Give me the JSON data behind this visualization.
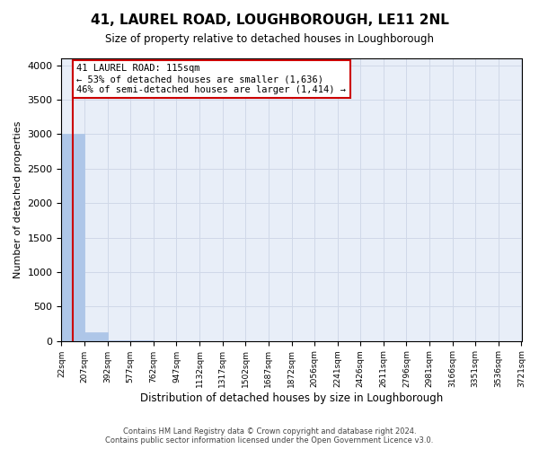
{
  "title": "41, LAUREL ROAD, LOUGHBOROUGH, LE11 2NL",
  "subtitle": "Size of property relative to detached houses in Loughborough",
  "xlabel": "Distribution of detached houses by size in Loughborough",
  "ylabel": "Number of detached properties",
  "footer_line1": "Contains HM Land Registry data © Crown copyright and database right 2024.",
  "footer_line2": "Contains public sector information licensed under the Open Government Licence v3.0.",
  "annotation_title": "41 LAUREL ROAD: 115sqm",
  "annotation_line1": "← 53% of detached houses are smaller (1,636)",
  "annotation_line2": "46% of semi-detached houses are larger (1,414) →",
  "property_size": 115,
  "bin_edges": [
    22,
    207,
    392,
    577,
    762,
    947,
    1132,
    1317,
    1502,
    1687,
    1872,
    2056,
    2241,
    2426,
    2611,
    2796,
    2981,
    3166,
    3351,
    3536,
    3721
  ],
  "bin_labels": [
    "22sqm",
    "207sqm",
    "392sqm",
    "577sqm",
    "762sqm",
    "947sqm",
    "1132sqm",
    "1317sqm",
    "1502sqm",
    "1687sqm",
    "1872sqm",
    "2056sqm",
    "2241sqm",
    "2426sqm",
    "2611sqm",
    "2796sqm",
    "2981sqm",
    "3166sqm",
    "3351sqm",
    "3536sqm",
    "3721sqm"
  ],
  "bar_heights": [
    3000,
    120,
    5,
    2,
    1,
    1,
    0,
    0,
    0,
    0,
    0,
    0,
    0,
    0,
    0,
    0,
    0,
    0,
    0,
    0
  ],
  "bar_color": "#aec6e8",
  "bar_edge_color": "#aec6e8",
  "red_line_color": "#cc0000",
  "annotation_box_edge_color": "#cc0000",
  "grid_color": "#d0d8e8",
  "background_color": "#e8eef8",
  "ylim": [
    0,
    4100
  ],
  "yticks": [
    0,
    500,
    1000,
    1500,
    2000,
    2500,
    3000,
    3500,
    4000
  ]
}
